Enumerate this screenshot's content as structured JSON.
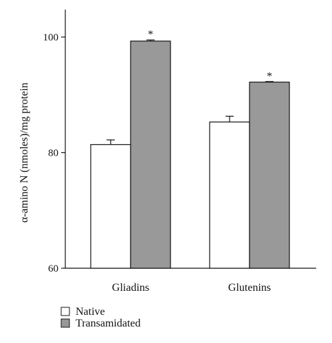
{
  "chart_data": {
    "type": "bar",
    "categories": [
      "Gliadins",
      "Glutenins"
    ],
    "series": [
      {
        "name": "Native",
        "values": [
          81.4,
          85.3
        ],
        "errors": [
          0.8,
          1.0
        ],
        "color": "#ffffff"
      },
      {
        "name": "Transamidated",
        "values": [
          99.3,
          92.2
        ],
        "errors": [
          0.2,
          0.1
        ],
        "color": "#999999"
      }
    ],
    "significance": [
      {
        "category": 0,
        "series": 1,
        "label": "*"
      },
      {
        "category": 1,
        "series": 1,
        "label": "*"
      }
    ],
    "ylabel": "α-amino N (nmoles)/mg protein",
    "ylim": [
      60,
      104
    ],
    "yticks": [
      60,
      80,
      100
    ],
    "ytick_labels": [
      "60",
      "80",
      "100"
    ],
    "grid": false,
    "legend_position": "bottom-left"
  }
}
